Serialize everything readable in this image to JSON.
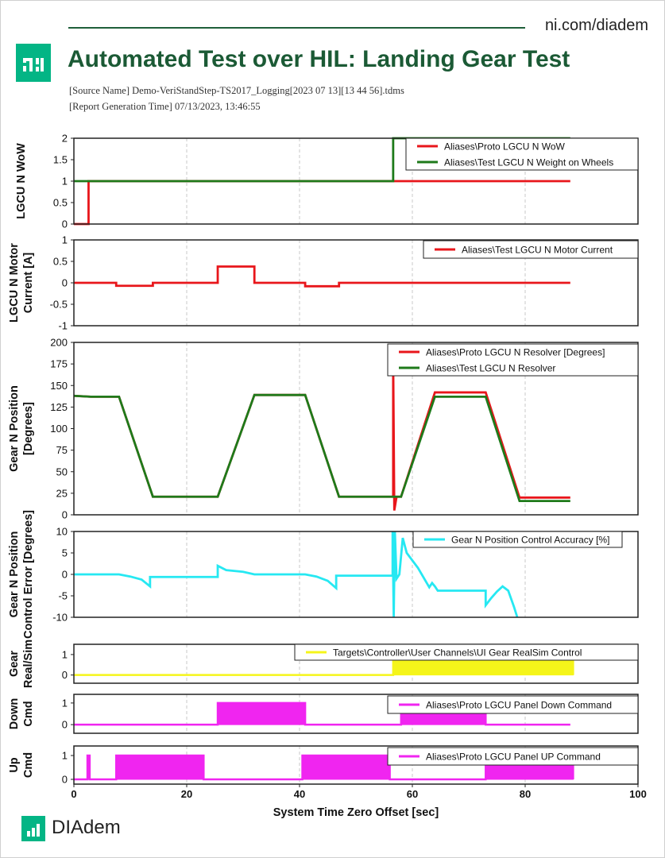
{
  "header": {
    "site": "ni.com/diadem",
    "title": "Automated Test over HIL: Landing Gear Test",
    "source_line": "[Source Name] Demo-VeriStandStep-TS2017_Logging[2023 07 13][13 44 56].tdms",
    "time_line": "[Report Generation Time] 07/13/2023, 13:46:55",
    "logo_icon": "ni-logo-icon"
  },
  "footer": {
    "brand": "DIAdem",
    "logo_icon": "diadem-logo-icon"
  },
  "colors": {
    "red": "#e8161b",
    "green": "#1e7a1a",
    "cyan": "#26e8f2",
    "yellow": "#f5f51a",
    "magenta": "#f025f0",
    "brand": "#03b585",
    "title": "#1b5a35"
  },
  "chart_data": {
    "type": "line",
    "xlabel": "System Time Zero Offset [sec]",
    "xlim": [
      0,
      100
    ],
    "xticks": [
      "0",
      "20",
      "40",
      "60",
      "80",
      "100"
    ],
    "grid": true,
    "panels": [
      {
        "ylabel": [
          "LGCU N WoW"
        ],
        "ylim": [
          0,
          2
        ],
        "yticks": [
          "0",
          "0.5",
          "1",
          "1.5",
          "2"
        ],
        "legend": "top-right",
        "series": [
          {
            "name": "Aliases\\Proto LGCU N WoW",
            "color": "red",
            "x": [
              0,
              2.6,
              2.6,
              88
            ],
            "y": [
              0,
              0,
              1,
              1
            ]
          },
          {
            "name": "Aliases\\Test LGCU N Weight on Wheels",
            "color": "green",
            "x": [
              0,
              56.6,
              56.6,
              88
            ],
            "y": [
              1,
              1,
              2,
              2
            ]
          }
        ]
      },
      {
        "ylabel": [
          "LGCU N Motor",
          "Current [A]"
        ],
        "ylim": [
          -1,
          1
        ],
        "yticks": [
          "-1",
          "-0.5",
          "0",
          "0.5",
          "1"
        ],
        "legend": "top-right",
        "series": [
          {
            "name": "Aliases\\Test LGCU N Motor Current",
            "color": "red",
            "x": [
              0,
              7.5,
              7.5,
              14,
              14,
              25.5,
              25.5,
              32,
              32,
              41,
              41,
              47,
              47,
              88
            ],
            "y": [
              0,
              0,
              -0.07,
              -0.07,
              0,
              0,
              0.38,
              0.38,
              0,
              0,
              -0.08,
              -0.08,
              0,
              0
            ]
          }
        ]
      },
      {
        "ylabel": [
          "Gear N Position",
          "[Degrees]"
        ],
        "ylim": [
          0,
          200
        ],
        "yticks": [
          "0",
          "25",
          "50",
          "75",
          "100",
          "125",
          "150",
          "175",
          "200"
        ],
        "legend": "top-right",
        "series": [
          {
            "name": "Aliases\\Proto LGCU N Resolver [Degrees]",
            "color": "red",
            "x": [
              0,
              3,
              8,
              14,
              25.5,
              32,
              41,
              47,
              56.6,
              56.6,
              56.8,
              57.2,
              58,
              64,
              73,
              79,
              88
            ],
            "y": [
              138,
              137,
              137,
              21,
              21,
              139,
              139,
              21,
              21,
              180,
              5,
              21,
              21,
              142,
              142,
              20,
              20
            ]
          },
          {
            "name": "Aliases\\Test LGCU N Resolver",
            "color": "green",
            "x": [
              0,
              3,
              8,
              14,
              25.5,
              32,
              41,
              47,
              58,
              64,
              73,
              79,
              88
            ],
            "y": [
              138,
              137,
              137,
              21,
              21,
              139,
              139,
              21,
              21,
              137,
              137,
              16,
              16
            ]
          }
        ]
      },
      {
        "ylabel": [
          "Gear N Position",
          "Control Error [Degrees]"
        ],
        "ylim": [
          -10,
          10
        ],
        "yticks": [
          "-10",
          "-5",
          "0",
          "5",
          "10"
        ],
        "legend": "top-right",
        "series": [
          {
            "name": "Gear N Position Control Accuracy [%]",
            "color": "cyan",
            "x": [
              0,
              8,
              10,
              12,
              13.5,
              13.5,
              25.5,
              25.5,
              27,
              30,
              32,
              41,
              43,
              45,
              46.5,
              46.5,
              56.5,
              56.5,
              56.7,
              56.9,
              57.2,
              57.7,
              58.3,
              59,
              61,
              63,
              63.5,
              64,
              64.5,
              73,
              73,
              74,
              75,
              76,
              77,
              78,
              78.6
            ],
            "y": [
              0,
              0,
              -0.5,
              -1.2,
              -2.8,
              -0.6,
              -0.6,
              2.0,
              1.0,
              0.6,
              0,
              0,
              -0.5,
              -1.5,
              -3.2,
              -0.3,
              -0.3,
              10,
              -10,
              10,
              -1,
              0,
              8.5,
              5,
              1.5,
              -3,
              -2,
              -2.8,
              -3.8,
              -3.8,
              -7.2,
              -5.5,
              -4,
              -2.8,
              -3.8,
              -7.5,
              -10
            ]
          }
        ]
      },
      {
        "ylabel": [
          "Gear",
          "Real/Sim"
        ],
        "ylim": [
          -0.4,
          1.5
        ],
        "yticks": [
          "0",
          "1"
        ],
        "legend": "top-right",
        "series": [
          {
            "name": "Targets\\Controller\\User Channels\\UI Gear RealSim Control",
            "color": "yellow",
            "fill": true,
            "x": [
              0,
              56.6,
              56.6,
              88.5,
              88.5
            ],
            "y": [
              0,
              0,
              1,
              1,
              0
            ]
          }
        ]
      },
      {
        "ylabel": [
          "Down",
          "Cmd"
        ],
        "ylim": [
          -0.4,
          1.4
        ],
        "yticks": [
          "0",
          "1"
        ],
        "legend": "top-right",
        "series": [
          {
            "name": "Aliases\\Proto LGCU Panel Down Command",
            "color": "magenta",
            "fill": true,
            "x": [
              0,
              25.5,
              25.5,
              41,
              41,
              58,
              58,
              73,
              73,
              88
            ],
            "y": [
              0,
              0,
              1,
              1,
              0,
              0,
              1.1,
              1.1,
              0,
              0
            ]
          }
        ]
      },
      {
        "ylabel": [
          "Up",
          "Cmd"
        ],
        "ylim": [
          -0.2,
          1.4
        ],
        "yticks": [
          "0",
          "1"
        ],
        "legend": "top-right",
        "series": [
          {
            "name": "Aliases\\Proto LGCU Panel UP Command",
            "color": "magenta",
            "fill": true,
            "x": [
              0,
              2.4,
              2.4,
              2.8,
              2.8,
              7.5,
              7.5,
              23,
              23,
              40.5,
              40.5,
              56,
              56,
              73,
              73,
              88.5,
              88.5
            ],
            "y": [
              0,
              0,
              1,
              1,
              0,
              0,
              1,
              1,
              0,
              0,
              1,
              1,
              0,
              0,
              1,
              1,
              0
            ]
          }
        ]
      }
    ]
  }
}
